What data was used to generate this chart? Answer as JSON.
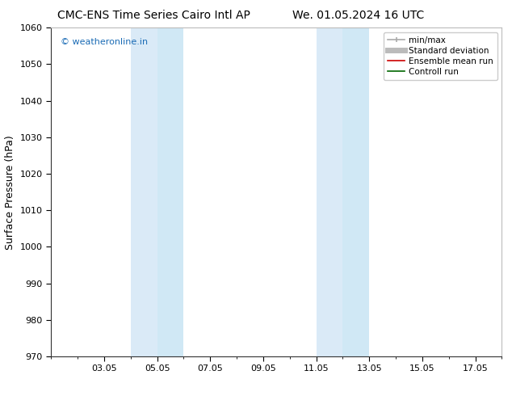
{
  "title_left": "CMC-ENS Time Series Cairo Intl AP",
  "title_right": "We. 01.05.2024 16 UTC",
  "ylabel": "Surface Pressure (hPa)",
  "ylim": [
    970,
    1060
  ],
  "yticks": [
    970,
    980,
    990,
    1000,
    1010,
    1020,
    1030,
    1040,
    1050,
    1060
  ],
  "xtick_labels": [
    "03.05",
    "05.05",
    "07.05",
    "09.05",
    "11.05",
    "13.05",
    "15.05",
    "17.05"
  ],
  "xtick_positions": [
    3,
    5,
    7,
    9,
    11,
    13,
    15,
    17
  ],
  "xlim": [
    1,
    18
  ],
  "watermark": "© weatheronline.in",
  "watermark_color": "#1a6bb5",
  "background_color": "#ffffff",
  "plot_bg_color": "#ffffff",
  "shaded_bands": [
    {
      "x_start": 4.0,
      "x_end": 5.0,
      "color": "#daeaf7"
    },
    {
      "x_start": 5.0,
      "x_end": 6.0,
      "color": "#d0e8f5"
    },
    {
      "x_start": 11.0,
      "x_end": 12.0,
      "color": "#daeaf7"
    },
    {
      "x_start": 12.0,
      "x_end": 13.0,
      "color": "#d0e8f5"
    }
  ],
  "legend_entries": [
    {
      "label": "min/max",
      "color": "#aaaaaa",
      "lw": 1.2
    },
    {
      "label": "Standard deviation",
      "color": "#bbbbbb",
      "lw": 5
    },
    {
      "label": "Ensemble mean run",
      "color": "#cc0000",
      "lw": 1.2
    },
    {
      "label": "Controll run",
      "color": "#006600",
      "lw": 1.2
    }
  ],
  "title_fontsize": 10,
  "ylabel_fontsize": 9,
  "tick_fontsize": 8,
  "legend_fontsize": 7.5,
  "watermark_fontsize": 8
}
